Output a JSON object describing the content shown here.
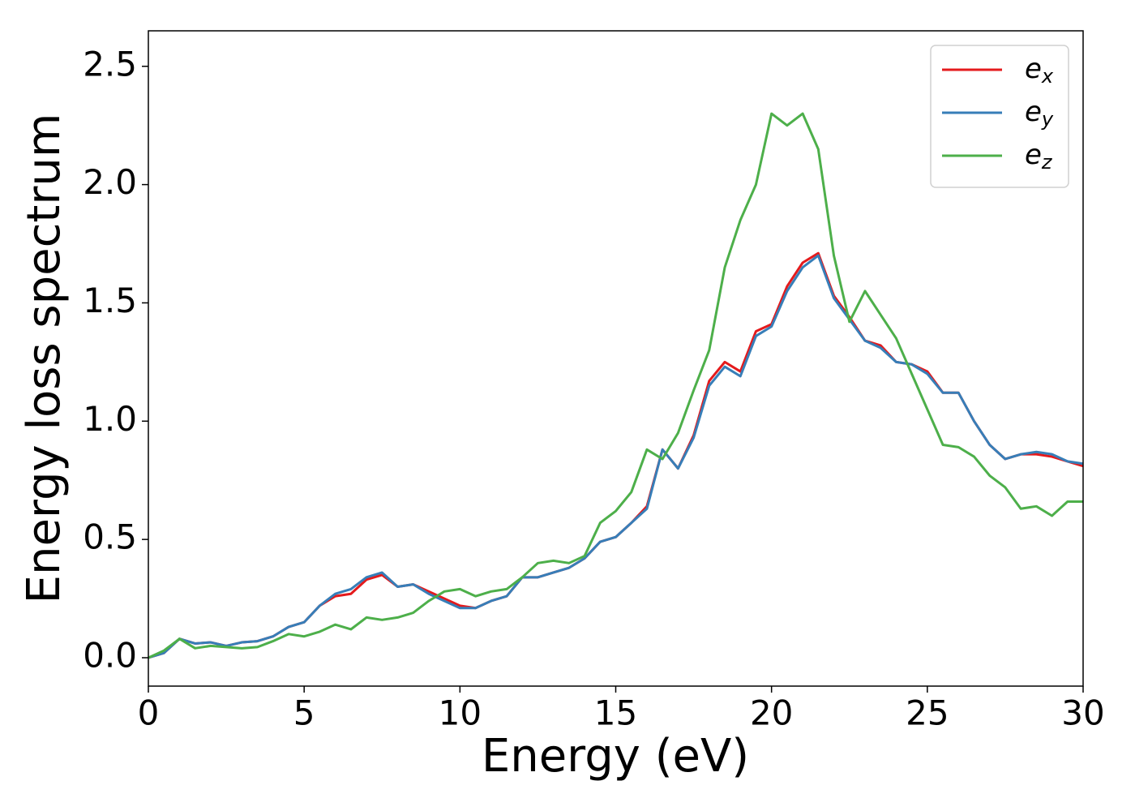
{
  "chart_data": {
    "type": "line",
    "xlabel": "Energy (eV)",
    "ylabel": "Energy loss spectrum",
    "x": [
      0,
      0.5,
      1,
      1.5,
      2,
      2.5,
      3,
      3.5,
      4,
      4.5,
      5,
      5.5,
      6,
      6.5,
      7,
      7.5,
      8,
      8.5,
      9,
      9.5,
      10,
      10.5,
      11,
      11.5,
      12,
      12.5,
      13,
      13.5,
      14,
      14.5,
      15,
      15.5,
      16,
      16.5,
      17,
      17.5,
      18,
      18.5,
      19,
      19.5,
      20,
      20.5,
      21,
      21.5,
      22,
      22.5,
      23,
      23.5,
      24,
      24.5,
      25,
      25.5,
      26,
      26.5,
      27,
      27.5,
      28,
      28.5,
      29,
      29.5,
      30
    ],
    "series": [
      {
        "name": "ex",
        "color": "#e41a1c",
        "values": [
          0,
          0.02,
          0.08,
          0.06,
          0.065,
          0.05,
          0.065,
          0.07,
          0.09,
          0.13,
          0.15,
          0.22,
          0.26,
          0.27,
          0.33,
          0.35,
          0.3,
          0.31,
          0.28,
          0.25,
          0.22,
          0.21,
          0.24,
          0.26,
          0.34,
          0.34,
          0.36,
          0.38,
          0.42,
          0.49,
          0.51,
          0.57,
          0.64,
          0.88,
          0.8,
          0.94,
          1.17,
          1.25,
          1.21,
          1.38,
          1.41,
          1.57,
          1.67,
          1.71,
          1.53,
          1.44,
          1.34,
          1.32,
          1.25,
          1.24,
          1.21,
          1.12,
          1.12,
          1.0,
          0.9,
          0.84,
          0.86,
          0.86,
          0.85,
          0.83,
          0.81
        ]
      },
      {
        "name": "ey",
        "color": "#377eb8",
        "values": [
          0,
          0.02,
          0.08,
          0.06,
          0.065,
          0.05,
          0.065,
          0.07,
          0.09,
          0.13,
          0.15,
          0.22,
          0.27,
          0.29,
          0.34,
          0.36,
          0.3,
          0.31,
          0.27,
          0.24,
          0.21,
          0.21,
          0.24,
          0.26,
          0.34,
          0.34,
          0.36,
          0.38,
          0.42,
          0.49,
          0.51,
          0.57,
          0.63,
          0.88,
          0.8,
          0.93,
          1.15,
          1.23,
          1.19,
          1.36,
          1.4,
          1.55,
          1.65,
          1.7,
          1.52,
          1.43,
          1.34,
          1.31,
          1.25,
          1.24,
          1.2,
          1.12,
          1.12,
          1.0,
          0.9,
          0.84,
          0.86,
          0.87,
          0.86,
          0.83,
          0.82
        ]
      },
      {
        "name": "ez",
        "color": "#4daf4a",
        "values": [
          0,
          0.03,
          0.08,
          0.04,
          0.05,
          0.045,
          0.04,
          0.045,
          0.07,
          0.1,
          0.09,
          0.11,
          0.14,
          0.12,
          0.17,
          0.16,
          0.17,
          0.19,
          0.24,
          0.28,
          0.29,
          0.26,
          0.28,
          0.29,
          0.34,
          0.4,
          0.41,
          0.4,
          0.43,
          0.57,
          0.62,
          0.7,
          0.88,
          0.84,
          0.95,
          1.13,
          1.3,
          1.65,
          1.85,
          2.0,
          2.3,
          2.25,
          2.3,
          2.15,
          1.7,
          1.42,
          1.55,
          1.45,
          1.35,
          1.2,
          1.05,
          0.9,
          0.89,
          0.85,
          0.77,
          0.72,
          0.63,
          0.64,
          0.6,
          0.66,
          0.66
        ]
      }
    ],
    "xlim": [
      0,
      30
    ],
    "xticks": [
      0,
      5,
      10,
      15,
      20,
      25,
      30
    ],
    "ylim": [
      -0.12,
      2.65
    ],
    "yticks": [
      {
        "value": 0,
        "label": "0.0"
      },
      0.5,
      {
        "value": 1,
        "label": "1.0"
      },
      1.5,
      {
        "value": 2,
        "label": "2.0"
      },
      2.5
    ],
    "legend": "upper right",
    "grid": false
  }
}
